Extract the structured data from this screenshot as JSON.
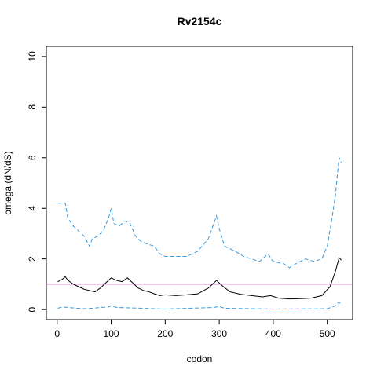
{
  "chart_data": {
    "type": "line",
    "title": "Rv2154c",
    "x_label": "codon",
    "y_label": "omega (dN/dS)",
    "xlim": [
      -20,
      547
    ],
    "ylim": [
      -0.4,
      10.4
    ],
    "xticks": [
      0,
      100,
      200,
      300,
      400,
      500
    ],
    "yticks": [
      0,
      2,
      4,
      6,
      8,
      10
    ],
    "hline": {
      "value": 1,
      "color": "#c779c7"
    },
    "series": [
      {
        "name": "omega",
        "color": "#000000",
        "dash": false,
        "x": [
          1,
          10,
          15,
          20,
          30,
          40,
          50,
          60,
          70,
          80,
          90,
          100,
          110,
          120,
          130,
          140,
          150,
          160,
          170,
          180,
          190,
          200,
          220,
          240,
          260,
          280,
          295,
          305,
          320,
          340,
          360,
          380,
          395,
          410,
          430,
          450,
          470,
          490,
          505,
          515,
          522,
          526
        ],
        "values": [
          1.1,
          1.2,
          1.3,
          1.15,
          1.0,
          0.9,
          0.8,
          0.75,
          0.7,
          0.85,
          1.05,
          1.25,
          1.15,
          1.1,
          1.25,
          1.05,
          0.85,
          0.75,
          0.7,
          0.62,
          0.55,
          0.58,
          0.55,
          0.58,
          0.62,
          0.85,
          1.15,
          0.95,
          0.7,
          0.6,
          0.55,
          0.5,
          0.55,
          0.45,
          0.42,
          0.43,
          0.45,
          0.55,
          0.9,
          1.5,
          2.05,
          1.95
        ]
      },
      {
        "name": "upper",
        "color": "#3399dd",
        "dash": true,
        "x": [
          1,
          15,
          20,
          30,
          40,
          50,
          60,
          65,
          75,
          85,
          95,
          100,
          105,
          115,
          125,
          135,
          145,
          155,
          165,
          180,
          190,
          200,
          220,
          240,
          260,
          280,
          295,
          300,
          310,
          330,
          345,
          360,
          375,
          390,
          400,
          420,
          430,
          445,
          460,
          475,
          490,
          500,
          508,
          515,
          520,
          522,
          526
        ],
        "values": [
          4.2,
          4.2,
          3.6,
          3.3,
          3.1,
          2.9,
          2.5,
          2.8,
          2.9,
          3.1,
          3.6,
          4.0,
          3.4,
          3.3,
          3.5,
          3.4,
          2.9,
          2.7,
          2.6,
          2.5,
          2.2,
          2.1,
          2.1,
          2.1,
          2.3,
          2.8,
          3.7,
          3.2,
          2.5,
          2.3,
          2.1,
          2.0,
          1.9,
          2.2,
          1.9,
          1.8,
          1.65,
          1.85,
          2.0,
          1.9,
          2.0,
          2.5,
          3.5,
          4.5,
          5.6,
          6.0,
          5.8
        ]
      },
      {
        "name": "lower",
        "color": "#3399dd",
        "dash": true,
        "x": [
          1,
          10,
          20,
          50,
          95,
          100,
          110,
          200,
          290,
          300,
          310,
          400,
          500,
          515,
          522,
          526
        ],
        "values": [
          0.05,
          0.1,
          0.08,
          0.03,
          0.1,
          0.15,
          0.08,
          0.02,
          0.08,
          0.12,
          0.05,
          0.02,
          0.03,
          0.15,
          0.3,
          0.2
        ]
      }
    ]
  }
}
